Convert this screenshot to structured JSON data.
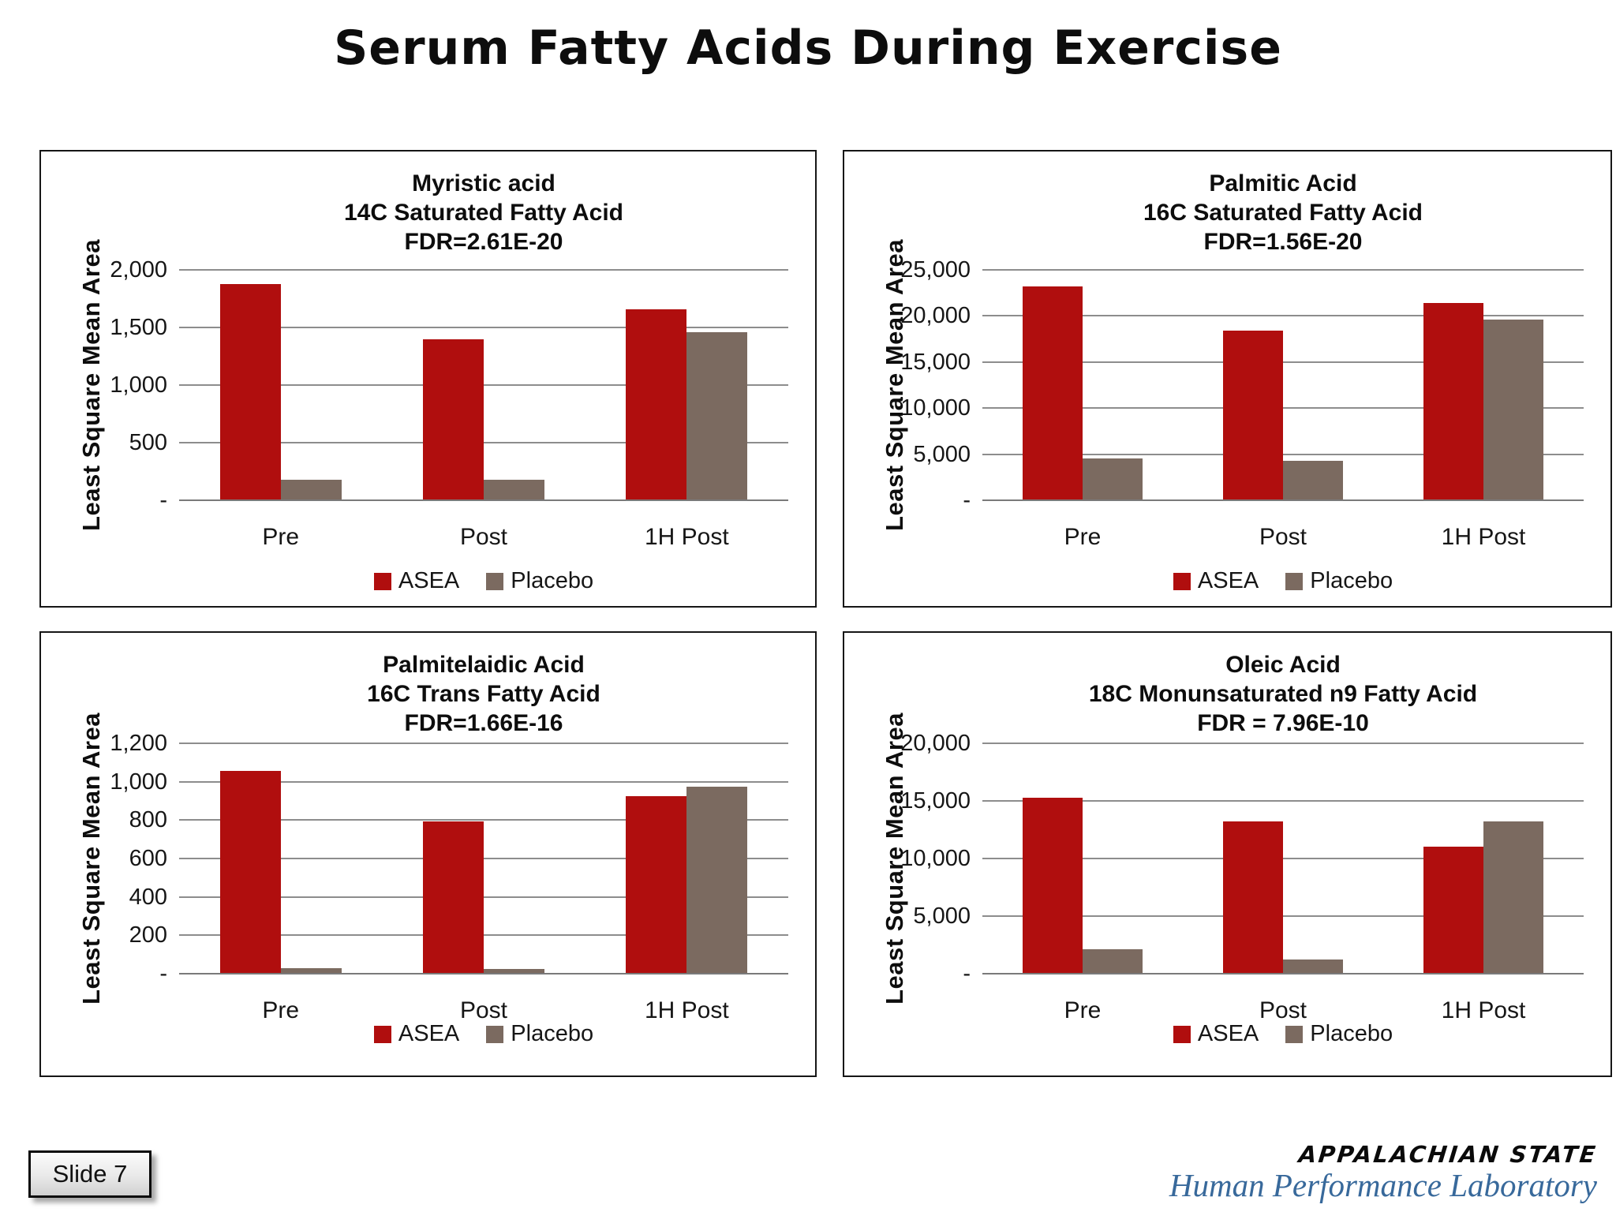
{
  "page": {
    "title": "Serum Fatty Acids During Exercise",
    "slide_label": "Slide 7"
  },
  "footer": {
    "brand": "APPALACHIAN STATE",
    "subbrand": "Human Performance Laboratory"
  },
  "colors": {
    "asea": "#B00E0E",
    "placebo": "#7B6A60",
    "gridline": "#8D8D8D",
    "axis": "#7A7A7A",
    "footer_blue": "#38699B"
  },
  "chart_data": [
    {
      "type": "bar",
      "id": "myristic-acid",
      "title_lines": [
        "Myristic acid",
        "14C Saturated Fatty Acid",
        "FDR=2.61E-20"
      ],
      "ylabel": "Least Square Mean Area",
      "xlabel": "",
      "categories": [
        "Pre",
        "Post",
        "1H Post"
      ],
      "series": [
        {
          "name": "ASEA",
          "values": [
            1880,
            1400,
            1660
          ]
        },
        {
          "name": "Placebo",
          "values": [
            180,
            180,
            1460
          ]
        }
      ],
      "ylim": [
        0,
        2000
      ],
      "ytick_interval": 500,
      "ytick_labels": [
        "-",
        "500",
        "1,000",
        "1,500",
        "2,000"
      ],
      "grid": true,
      "legend_position": "bottom"
    },
    {
      "type": "bar",
      "id": "palmitic-acid",
      "title_lines": [
        "Palmitic Acid",
        "16C Saturated Fatty Acid",
        "FDR=1.56E-20"
      ],
      "ylabel": "Least Square Mean Area",
      "xlabel": "",
      "categories": [
        "Pre",
        "Post",
        "1H Post"
      ],
      "series": [
        {
          "name": "ASEA",
          "values": [
            23200,
            18400,
            21400
          ]
        },
        {
          "name": "Placebo",
          "values": [
            4550,
            4300,
            19600
          ]
        }
      ],
      "ylim": [
        0,
        25000
      ],
      "ytick_interval": 5000,
      "ytick_labels": [
        "-",
        "5,000",
        "10,000",
        "15,000",
        "20,000",
        "25,000"
      ],
      "grid": true,
      "legend_position": "bottom"
    },
    {
      "type": "bar",
      "id": "palmitelaidic-acid",
      "title_lines": [
        "Palmitelaidic Acid",
        "16C Trans Fatty Acid",
        "FDR=1.66E-16"
      ],
      "ylabel": "Least Square Mean Area",
      "xlabel": "",
      "categories": [
        "Pre",
        "Post",
        "1H Post"
      ],
      "series": [
        {
          "name": "ASEA",
          "values": [
            1055,
            795,
            925
          ]
        },
        {
          "name": "Placebo",
          "values": [
            30,
            25,
            975
          ]
        }
      ],
      "ylim": [
        0,
        1200
      ],
      "ytick_interval": 200,
      "ytick_labels": [
        "-",
        "200",
        "400",
        "600",
        "800",
        "1,000",
        "1,200"
      ],
      "grid": true,
      "legend_position": "bottom"
    },
    {
      "type": "bar",
      "id": "oleic-acid",
      "title_lines": [
        "Oleic Acid",
        "18C Monunsaturated n9 Fatty Acid",
        "FDR = 7.96E-10"
      ],
      "ylabel": "Least Square Mean Area",
      "xlabel": "",
      "categories": [
        "Pre",
        "Post",
        "1H Post"
      ],
      "series": [
        {
          "name": "ASEA",
          "values": [
            15300,
            13200,
            11000
          ]
        },
        {
          "name": "Placebo",
          "values": [
            2100,
            1200,
            13200
          ]
        }
      ],
      "ylim": [
        0,
        20000
      ],
      "ytick_interval": 5000,
      "ytick_labels": [
        "-",
        "5,000",
        "10,000",
        "15,000",
        "20,000"
      ],
      "grid": true,
      "legend_position": "bottom"
    }
  ]
}
